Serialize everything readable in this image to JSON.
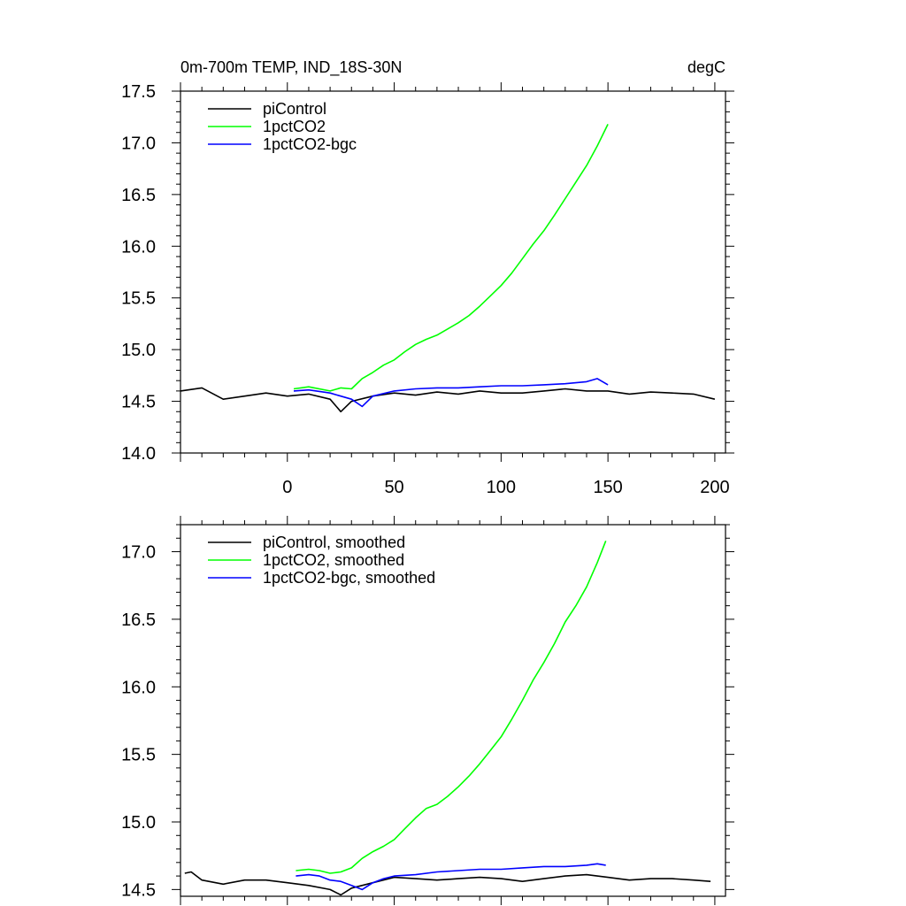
{
  "colors": {
    "piControl": "#000000",
    "1pctCO2": "#00ff00",
    "1pctCO2-bgc": "#0000ff"
  },
  "chart_data": [
    {
      "type": "line",
      "title_left": "0m-700m TEMP, IND_18S-30N",
      "title_right": "degC",
      "xlim": [
        -50,
        205
      ],
      "ylim": [
        14.0,
        17.5
      ],
      "xticks": [
        0,
        50,
        100,
        150,
        200
      ],
      "yticks": [
        14.0,
        14.5,
        15.0,
        15.5,
        16.0,
        16.5,
        17.0,
        17.5
      ],
      "yticklabels": [
        "14.0",
        "14.5",
        "15.0",
        "15.5",
        "16.0",
        "16.5",
        "17.0",
        "17.5"
      ],
      "grid": false,
      "legend_position": "top-left",
      "series": [
        {
          "name": "piControl",
          "color": "#000000",
          "x": [
            -50,
            -40,
            -30,
            -20,
            -10,
            0,
            10,
            20,
            25,
            30,
            40,
            50,
            60,
            70,
            80,
            90,
            100,
            110,
            120,
            130,
            140,
            150,
            160,
            170,
            180,
            190,
            200
          ],
          "y": [
            14.6,
            14.63,
            14.52,
            14.55,
            14.58,
            14.55,
            14.57,
            14.52,
            14.4,
            14.5,
            14.55,
            14.58,
            14.56,
            14.59,
            14.57,
            14.6,
            14.58,
            14.58,
            14.6,
            14.62,
            14.6,
            14.6,
            14.57,
            14.59,
            14.58,
            14.57,
            14.52
          ]
        },
        {
          "name": "1pctCO2",
          "color": "#00ff00",
          "x": [
            3,
            10,
            20,
            25,
            30,
            35,
            40,
            45,
            50,
            55,
            60,
            65,
            70,
            75,
            80,
            85,
            90,
            95,
            100,
            105,
            110,
            115,
            120,
            125,
            130,
            135,
            140,
            145,
            150
          ],
          "y": [
            14.62,
            14.64,
            14.6,
            14.63,
            14.62,
            14.72,
            14.78,
            14.85,
            14.9,
            14.98,
            15.05,
            15.1,
            15.14,
            15.2,
            15.26,
            15.33,
            15.42,
            15.52,
            15.62,
            15.74,
            15.88,
            16.02,
            16.15,
            16.3,
            16.46,
            16.62,
            16.78,
            16.97,
            17.18
          ]
        },
        {
          "name": "1pctCO2-bgc",
          "color": "#0000ff",
          "x": [
            3,
            10,
            20,
            30,
            35,
            40,
            50,
            60,
            70,
            80,
            90,
            100,
            110,
            120,
            130,
            140,
            145,
            150
          ],
          "y": [
            14.6,
            14.61,
            14.58,
            14.52,
            14.45,
            14.55,
            14.6,
            14.62,
            14.63,
            14.63,
            14.64,
            14.65,
            14.65,
            14.66,
            14.67,
            14.69,
            14.72,
            14.66
          ]
        }
      ]
    },
    {
      "type": "line",
      "xlim": [
        -50,
        205
      ],
      "ylim": [
        14.45,
        17.2
      ],
      "yticks": [
        14.5,
        15.0,
        15.5,
        16.0,
        16.5,
        17.0
      ],
      "yticklabels": [
        "14.5",
        "15.0",
        "15.5",
        "16.0",
        "16.5",
        "17.0"
      ],
      "grid": false,
      "legend_position": "top-left",
      "series": [
        {
          "name": "piControl, smoothed",
          "color": "#000000",
          "x": [
            -48,
            -45,
            -40,
            -30,
            -20,
            -10,
            0,
            10,
            20,
            25,
            30,
            40,
            50,
            60,
            70,
            80,
            90,
            100,
            110,
            120,
            130,
            140,
            150,
            160,
            170,
            180,
            190,
            198
          ],
          "y": [
            14.62,
            14.63,
            14.57,
            14.54,
            14.57,
            14.57,
            14.55,
            14.53,
            14.5,
            14.46,
            14.51,
            14.55,
            14.59,
            14.58,
            14.57,
            14.58,
            14.59,
            14.58,
            14.56,
            14.58,
            14.6,
            14.61,
            14.59,
            14.57,
            14.58,
            14.58,
            14.57,
            14.56
          ]
        },
        {
          "name": "1pctCO2, smoothed",
          "color": "#00ff00",
          "x": [
            4,
            10,
            15,
            20,
            25,
            30,
            35,
            40,
            45,
            50,
            55,
            60,
            65,
            70,
            75,
            80,
            85,
            90,
            95,
            100,
            105,
            110,
            115,
            120,
            125,
            130,
            135,
            140,
            145,
            149
          ],
          "y": [
            14.64,
            14.65,
            14.64,
            14.62,
            14.63,
            14.66,
            14.73,
            14.78,
            14.82,
            14.87,
            14.95,
            15.03,
            15.1,
            15.13,
            15.19,
            15.26,
            15.34,
            15.43,
            15.53,
            15.63,
            15.76,
            15.9,
            16.05,
            16.18,
            16.32,
            16.48,
            16.6,
            16.74,
            16.92,
            17.08
          ]
        },
        {
          "name": "1pctCO2-bgc, smoothed",
          "color": "#0000ff",
          "x": [
            4,
            10,
            15,
            20,
            25,
            30,
            35,
            40,
            45,
            50,
            60,
            70,
            80,
            90,
            100,
            110,
            120,
            130,
            140,
            145,
            149
          ],
          "y": [
            14.6,
            14.61,
            14.6,
            14.57,
            14.56,
            14.53,
            14.5,
            14.55,
            14.58,
            14.6,
            14.61,
            14.63,
            14.64,
            14.65,
            14.65,
            14.66,
            14.67,
            14.67,
            14.68,
            14.69,
            14.68
          ]
        }
      ]
    }
  ]
}
